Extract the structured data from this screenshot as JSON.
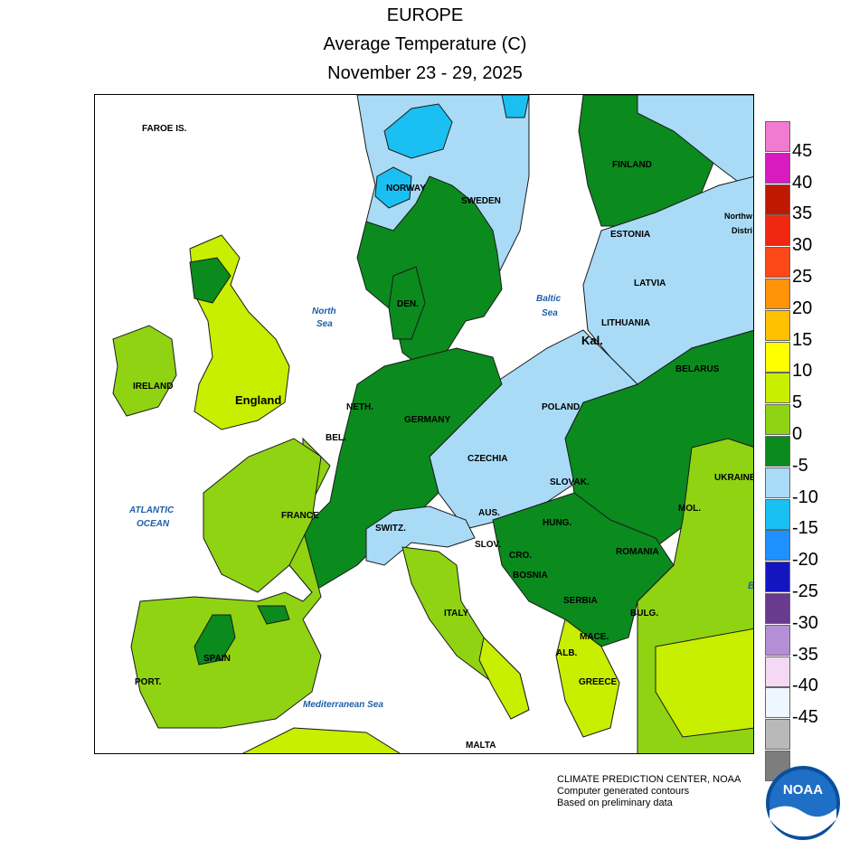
{
  "title": {
    "line1": "EUROPE",
    "line2": "Average Temperature (C)",
    "line3": "November 23 - 29, 2025"
  },
  "colors": {
    "water": "#ffffff",
    "band_0_5": "#0b8a1e",
    "band_5_10": "#8fd313",
    "band_10_15": "#c8ee00",
    "band_m5_0": "#a9dbf7",
    "band_m10_m5": "#1bc0f2"
  },
  "legend": {
    "bands": [
      {
        "color": "#f07bd0"
      },
      {
        "color": "#d81bc0"
      },
      {
        "color": "#c01800"
      },
      {
        "color": "#f02810"
      },
      {
        "color": "#ff4818"
      },
      {
        "color": "#ff9408"
      },
      {
        "color": "#ffc000"
      },
      {
        "color": "#ffff00"
      },
      {
        "color": "#c8ee00"
      },
      {
        "color": "#8fd313"
      },
      {
        "color": "#0b8a1e"
      },
      {
        "color": "#a9dbf7"
      },
      {
        "color": "#1bc0f2"
      },
      {
        "color": "#1e90ff"
      },
      {
        "color": "#1515c0"
      },
      {
        "color": "#6a3a8e"
      },
      {
        "color": "#b58fd6"
      },
      {
        "color": "#f4d8f4"
      },
      {
        "color": "#eef6ff"
      },
      {
        "color": "#b9b9b9"
      },
      {
        "color": "#7d7d7d"
      }
    ],
    "labels": [
      "45",
      "40",
      "35",
      "30",
      "25",
      "20",
      "15",
      "10",
      "5",
      "0",
      "-5",
      "-10",
      "-15",
      "-20",
      "-25",
      "-30",
      "-35",
      "-40",
      "-45"
    ]
  },
  "labels": {
    "faroe": "FAROE IS.",
    "norway": "NORWAY",
    "sweden": "SWEDEN",
    "finland": "FINLAND",
    "estonia": "ESTONIA",
    "latvia": "LATVIA",
    "lithuania": "LITHUANIA",
    "kal": "Kal.",
    "belarus": "BELARUS",
    "ireland": "IRELAND",
    "england": "England",
    "den": "DEN.",
    "neth": "NETH.",
    "bel": "BEL.",
    "germany": "GERMANY",
    "poland": "POLAND",
    "czechia": "CZECHIA",
    "slovak": "SLOVAK.",
    "aus": "AUS.",
    "hung": "HUNG.",
    "switz": "SWITZ.",
    "slov": "SLOV.",
    "cro": "CRO.",
    "bosnia": "BOSNIA",
    "romania": "ROMANIA",
    "mol": "MOL.",
    "ukraine": "UKRAINE",
    "serbia": "SERBIA",
    "bulg": "BULG.",
    "mace": "MACE.",
    "alb": "ALB.",
    "greece": "GREECE",
    "france": "FRANCE",
    "spain": "SPAIN",
    "port": "PORT.",
    "italy": "ITALY",
    "malta": "MALTA",
    "northwest_1": "Northw",
    "northwest_2": "Distri",
    "b_edge": "B"
  },
  "seas": {
    "north_1": "North",
    "north_2": "Sea",
    "baltic_1": "Baltic",
    "baltic_2": "Sea",
    "atlantic_1": "ATLANTIC",
    "atlantic_2": "OCEAN",
    "med": "Mediterranean Sea"
  },
  "credits": {
    "line1": "CLIMATE PREDICTION CENTER, NOAA",
    "line2": "Computer generated contours",
    "line3": "Based on preliminary data"
  },
  "logo": {
    "text": "NOAA"
  }
}
